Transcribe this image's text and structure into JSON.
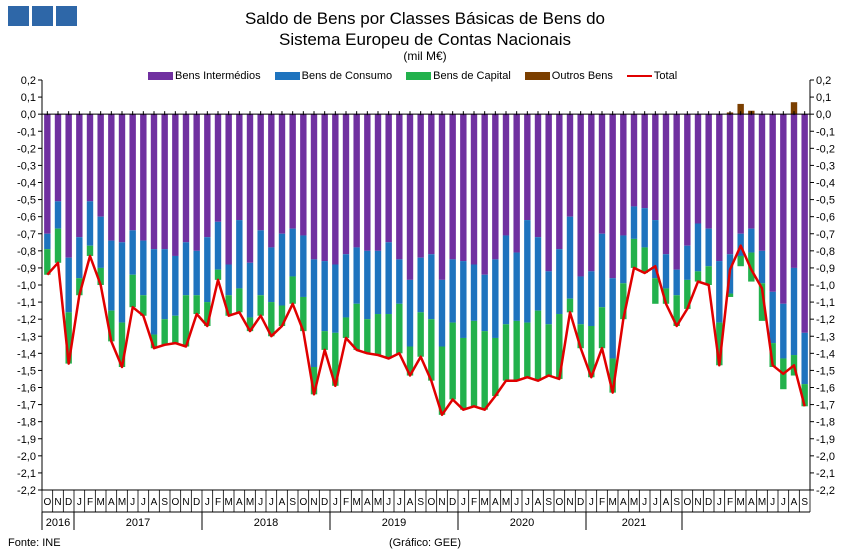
{
  "header": {
    "title_line1": "Saldo de Bens por Classes Básicas de Bens do",
    "title_line2": "Sistema Europeu de Contas Nacionais",
    "unit": "(mil M€)"
  },
  "footer": {
    "source": "Fonte: INE",
    "credit": "(Gráfico: GEE)"
  },
  "colors": {
    "intermedios": "#7030a0",
    "consumo": "#1e73be",
    "capital": "#22b14c",
    "outros": "#7b3f00",
    "total": "#e00000",
    "grid": "#bfbfbf",
    "logo": "#2e67a8"
  },
  "chart_data": {
    "type": "bar",
    "stacked": true,
    "categories": [
      "O",
      "N",
      "D",
      "J",
      "F",
      "M",
      "A",
      "M",
      "J",
      "J",
      "A",
      "S",
      "O",
      "N",
      "D",
      "J",
      "F",
      "M",
      "A",
      "M",
      "J",
      "J",
      "A",
      "S",
      "O",
      "N",
      "D",
      "J",
      "F",
      "M",
      "A",
      "M",
      "J",
      "J",
      "A",
      "S",
      "O",
      "N",
      "D",
      "J",
      "F",
      "M",
      "A",
      "M",
      "J",
      "J",
      "A",
      "S",
      "O",
      "N",
      "D",
      "J",
      "F",
      "M",
      "A",
      "M",
      "J",
      "J",
      "A",
      "S",
      "O",
      "N",
      "D",
      "J",
      "F",
      "M",
      "A",
      "M",
      "J",
      "J",
      "A",
      "S"
    ],
    "year_labels": [
      "2016",
      "2017",
      "2018",
      "2019",
      "2020",
      "2021"
    ],
    "year_spans": [
      3,
      12,
      12,
      12,
      12,
      9
    ],
    "series": [
      {
        "name": "Bens Intermédios",
        "values": [
          -0.7,
          -0.51,
          -0.84,
          -0.72,
          -0.51,
          -0.6,
          -0.74,
          -0.75,
          -0.68,
          -0.74,
          -0.79,
          -0.79,
          -0.83,
          -0.75,
          -0.8,
          -0.72,
          -0.63,
          -0.88,
          -0.62,
          -0.87,
          -0.68,
          -0.78,
          -0.7,
          -0.67,
          -0.71,
          -0.85,
          -0.86,
          -0.88,
          -0.82,
          -0.78,
          -0.8,
          -0.8,
          -0.75,
          -0.85,
          -0.97,
          -0.84,
          -0.82,
          -0.97,
          -0.85,
          -0.86,
          -0.88,
          -0.94,
          -0.85,
          -0.71,
          -0.81,
          -0.62,
          -0.72,
          -0.92,
          -0.79,
          -0.6,
          -0.95,
          -0.92,
          -0.7,
          -0.96,
          -0.71,
          -0.54,
          -0.55,
          -0.62,
          -0.82,
          -0.91,
          -0.77,
          -0.64,
          -0.67,
          -0.86,
          -0.82,
          -0.7,
          -0.67,
          -0.8,
          -1.04,
          -1.11,
          -0.9,
          -1.28
        ]
      },
      {
        "name": "Bens de Consumo",
        "values": [
          -0.09,
          -0.16,
          -0.32,
          -0.24,
          -0.26,
          -0.3,
          -0.41,
          -0.47,
          -0.26,
          -0.32,
          -0.5,
          -0.41,
          -0.35,
          -0.31,
          -0.26,
          -0.38,
          -0.28,
          -0.18,
          -0.4,
          -0.32,
          -0.38,
          -0.32,
          -0.42,
          -0.28,
          -0.36,
          -0.63,
          -0.41,
          -0.4,
          -0.37,
          -0.33,
          -0.4,
          -0.37,
          -0.42,
          -0.26,
          -0.39,
          -0.32,
          -0.38,
          -0.39,
          -0.37,
          -0.45,
          -0.33,
          -0.33,
          -0.46,
          -0.52,
          -0.4,
          -0.6,
          -0.43,
          -0.31,
          -0.38,
          -0.48,
          -0.28,
          -0.32,
          -0.43,
          -0.47,
          -0.28,
          -0.19,
          -0.23,
          -0.34,
          -0.2,
          -0.15,
          -0.2,
          -0.28,
          -0.22,
          -0.36,
          -0.23,
          -0.13,
          -0.14,
          -0.19,
          -0.3,
          -0.32,
          -0.51,
          -0.3
        ]
      },
      {
        "name": "Bens de Capital",
        "values": [
          -0.15,
          -0.2,
          -0.3,
          -0.1,
          -0.06,
          -0.1,
          -0.18,
          -0.26,
          -0.19,
          -0.12,
          -0.08,
          -0.15,
          -0.16,
          -0.3,
          -0.11,
          -0.14,
          -0.06,
          -0.12,
          -0.14,
          -0.08,
          -0.12,
          -0.2,
          -0.12,
          -0.16,
          -0.2,
          -0.16,
          -0.11,
          -0.31,
          -0.12,
          -0.27,
          -0.2,
          -0.24,
          -0.26,
          -0.29,
          -0.17,
          -0.26,
          -0.36,
          -0.4,
          -0.45,
          -0.42,
          -0.5,
          -0.46,
          -0.34,
          -0.33,
          -0.35,
          -0.32,
          -0.41,
          -0.3,
          -0.38,
          -0.08,
          -0.14,
          -0.3,
          -0.24,
          -0.2,
          -0.21,
          -0.17,
          -0.15,
          -0.15,
          -0.09,
          -0.18,
          -0.17,
          -0.06,
          -0.11,
          -0.25,
          -0.02,
          -0.06,
          -0.17,
          -0.22,
          -0.14,
          -0.18,
          -0.12,
          -0.13
        ]
      },
      {
        "name": "Outros Bens",
        "values": [
          0,
          0,
          0,
          0,
          0,
          0,
          0,
          0,
          0,
          0,
          0,
          0,
          0,
          0,
          0,
          0,
          0,
          0,
          0,
          0,
          0,
          0,
          0,
          0,
          0,
          0,
          0,
          0,
          0,
          0,
          0,
          0,
          0,
          0,
          0,
          0,
          0,
          0,
          0,
          0,
          0,
          0,
          0,
          0,
          0,
          0,
          0,
          0,
          0,
          0,
          0,
          0,
          0,
          0,
          0,
          0,
          0,
          0,
          0,
          0,
          0,
          0,
          0,
          0,
          0.01,
          0.06,
          0.02,
          0,
          0,
          0,
          0.07,
          0
        ]
      },
      {
        "name": "Total",
        "type": "line",
        "values": [
          -0.94,
          -0.87,
          -1.46,
          -1.06,
          -0.83,
          -1.0,
          -1.33,
          -1.48,
          -1.13,
          -1.18,
          -1.37,
          -1.35,
          -1.34,
          -1.36,
          -1.17,
          -1.24,
          -0.97,
          -1.18,
          -1.16,
          -1.27,
          -1.18,
          -1.3,
          -1.24,
          -1.11,
          -1.27,
          -1.64,
          -1.38,
          -1.59,
          -1.31,
          -1.38,
          -1.4,
          -1.41,
          -1.43,
          -1.4,
          -1.53,
          -1.42,
          -1.56,
          -1.76,
          -1.67,
          -1.73,
          -1.71,
          -1.73,
          -1.65,
          -1.56,
          -1.56,
          -1.54,
          -1.56,
          -1.53,
          -1.55,
          -1.16,
          -1.37,
          -1.54,
          -1.37,
          -1.63,
          -1.2,
          -0.9,
          -0.93,
          -0.89,
          -1.11,
          -1.24,
          -1.14,
          -0.98,
          -1.0,
          -1.47,
          -0.91,
          -0.77,
          -0.91,
          -1.02,
          -1.47,
          -1.52,
          -1.47,
          -1.71
        ]
      }
    ],
    "ylim": [
      -2.2,
      0.2
    ],
    "yticks": [
      "0,2",
      "0,1",
      "0,0",
      "-0,1",
      "-0,2",
      "-0,3",
      "-0,4",
      "-0,5",
      "-0,6",
      "-0,7",
      "-0,8",
      "-0,9",
      "-1,0",
      "-1,1",
      "-1,2",
      "-1,3",
      "-1,4",
      "-1,5",
      "-1,6",
      "-1,7",
      "-1,8",
      "-1,9",
      "-2,0",
      "-2,1",
      "-2,2"
    ],
    "ytick_values": [
      0.2,
      0.1,
      0.0,
      -0.1,
      -0.2,
      -0.3,
      -0.4,
      -0.5,
      -0.6,
      -0.7,
      -0.8,
      -0.9,
      -1.0,
      -1.1,
      -1.2,
      -1.3,
      -1.4,
      -1.5,
      -1.6,
      -1.7,
      -1.8,
      -1.9,
      -2.0,
      -2.1,
      -2.2
    ],
    "legend_position": "top",
    "grid": false
  }
}
